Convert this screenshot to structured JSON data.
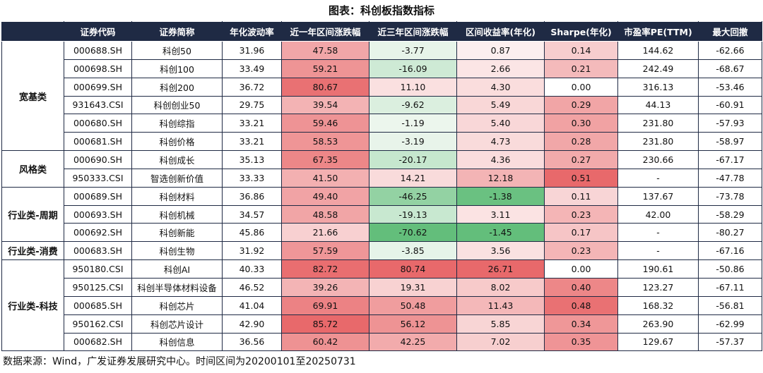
{
  "title": "图表：科创板指数指标",
  "headers": [
    "",
    "证券代码",
    "证券简称",
    "年化波动率",
    "近一年区间涨跌幅",
    "近三年区间涨跌幅",
    "区间收益率(年化)",
    "Sharpe(年化)",
    "市盈率PE(TTM)",
    "最大回撤"
  ],
  "groups": [
    {
      "label": "宽基类",
      "rows": [
        [
          "000688.SH",
          "科创50",
          "31.96",
          "47.58",
          "-3.77",
          "0.87",
          "0.14",
          "144.62",
          "-62.66"
        ],
        [
          "000698.SH",
          "科创100",
          "33.49",
          "59.21",
          "-16.09",
          "2.66",
          "0.21",
          "242.49",
          "-68.67"
        ],
        [
          "000699.SH",
          "科创200",
          "36.72",
          "80.67",
          "11.10",
          "4.30",
          "0.00",
          "316.13",
          "-53.46"
        ],
        [
          "931643.CSI",
          "科创创业50",
          "29.75",
          "39.54",
          "-9.62",
          "5.49",
          "0.29",
          "44.13",
          "-60.91"
        ],
        [
          "000680.SH",
          "科创综指",
          "33.21",
          "59.46",
          "-1.19",
          "5.40",
          "0.30",
          "231.80",
          "-57.93"
        ],
        [
          "000681.SH",
          "科创价格",
          "33.21",
          "58.53",
          "-3.19",
          "4.73",
          "0.28",
          "231.80",
          "-58.97"
        ]
      ]
    },
    {
      "label": "风格类",
      "rows": [
        [
          "000690.SH",
          "科创成长",
          "35.13",
          "67.35",
          "-20.17",
          "4.36",
          "0.27",
          "230.66",
          "-67.17"
        ],
        [
          "950333.CSI",
          "智选创新价值",
          "33.33",
          "41.50",
          "14.21",
          "12.18",
          "0.51",
          "-",
          "-47.78"
        ]
      ]
    },
    {
      "label": "行业类-周期",
      "rows": [
        [
          "000689.SH",
          "科创材料",
          "36.86",
          "49.40",
          "-46.25",
          "-1.38",
          "0.11",
          "137.67",
          "-73.78"
        ],
        [
          "000693.SH",
          "科创机械",
          "34.57",
          "48.58",
          "-19.13",
          "3.11",
          "0.23",
          "42.00",
          "-58.29"
        ],
        [
          "000692.SH",
          "科创新能",
          "45.86",
          "21.66",
          "-70.62",
          "-1.45",
          "0.17",
          "-",
          "-80.27"
        ]
      ]
    },
    {
      "label": "行业类-消费",
      "rows": [
        [
          "000683.SH",
          "科创生物",
          "31.92",
          "57.59",
          "-3.85",
          "3.56",
          "0.23",
          "-",
          "-67.16"
        ]
      ]
    },
    {
      "label": "行业类-科技",
      "rows": [
        [
          "950180.CSI",
          "科创AI",
          "40.33",
          "82.72",
          "80.74",
          "26.71",
          "0.00",
          "190.61",
          "-50.86"
        ],
        [
          "950125.CSI",
          "科创半导体材料设备",
          "46.52",
          "39.26",
          "19.31",
          "8.02",
          "0.40",
          "123.27",
          "-67.11"
        ],
        [
          "000685.SH",
          "科创芯片",
          "41.04",
          "69.91",
          "50.48",
          "11.43",
          "0.48",
          "168.32",
          "-56.81"
        ],
        [
          "950162.CSI",
          "科创芯片设计",
          "42.90",
          "85.72",
          "56.12",
          "5.85",
          "0.34",
          "263.90",
          "-62.99"
        ],
        [
          "000682.SH",
          "科创信息",
          "36.56",
          "60.42",
          "42.25",
          "7.02",
          "0.35",
          "129.67",
          "-57.37"
        ]
      ]
    }
  ],
  "colors": {
    "header_bg": "#1f2a44",
    "pos_strong": "#e8696b",
    "pos_weak": "#fdf3f3",
    "neg_strong": "#63be7b",
    "neg_weak": "#eef7ef"
  },
  "source": "数据来源：Wind，广发证券发展研究中心。时间区间为20200101至20250731"
}
